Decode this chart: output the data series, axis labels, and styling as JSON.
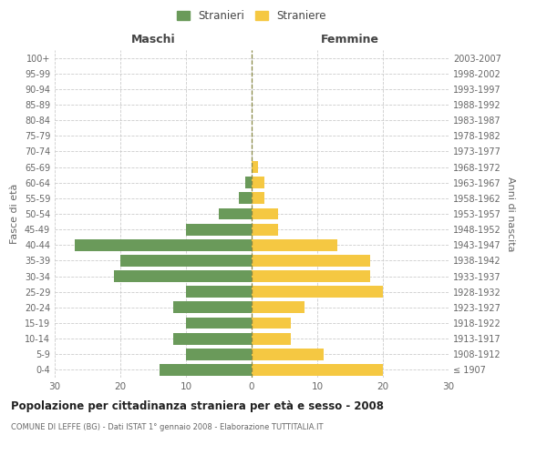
{
  "age_groups": [
    "100+",
    "95-99",
    "90-94",
    "85-89",
    "80-84",
    "75-79",
    "70-74",
    "65-69",
    "60-64",
    "55-59",
    "50-54",
    "45-49",
    "40-44",
    "35-39",
    "30-34",
    "25-29",
    "20-24",
    "15-19",
    "10-14",
    "5-9",
    "0-4"
  ],
  "birth_years": [
    "≤ 1907",
    "1908-1912",
    "1913-1917",
    "1918-1922",
    "1923-1927",
    "1928-1932",
    "1933-1937",
    "1938-1942",
    "1943-1947",
    "1948-1952",
    "1953-1957",
    "1958-1962",
    "1963-1967",
    "1968-1972",
    "1973-1977",
    "1978-1982",
    "1983-1987",
    "1988-1992",
    "1993-1997",
    "1998-2002",
    "2003-2007"
  ],
  "maschi": [
    0,
    0,
    0,
    0,
    0,
    0,
    0,
    0,
    1,
    2,
    5,
    10,
    27,
    20,
    21,
    10,
    12,
    10,
    12,
    10,
    14
  ],
  "femmine": [
    0,
    0,
    0,
    0,
    0,
    0,
    0,
    1,
    2,
    2,
    4,
    4,
    13,
    18,
    18,
    20,
    8,
    6,
    6,
    11,
    20
  ],
  "maschi_color": "#6a9a5a",
  "femmine_color": "#f5c842",
  "title": "Popolazione per cittadinanza straniera per età e sesso - 2008",
  "subtitle": "COMUNE DI LEFFE (BG) - Dati ISTAT 1° gennaio 2008 - Elaborazione TUTTITALIA.IT",
  "left_label": "Maschi",
  "right_label": "Femmine",
  "ylabel": "Fasce di età",
  "ylabel_right": "Anni di nascita",
  "legend_maschi": "Stranieri",
  "legend_femmine": "Straniere",
  "xlim": 30,
  "background_color": "#ffffff",
  "grid_color": "#cccccc"
}
